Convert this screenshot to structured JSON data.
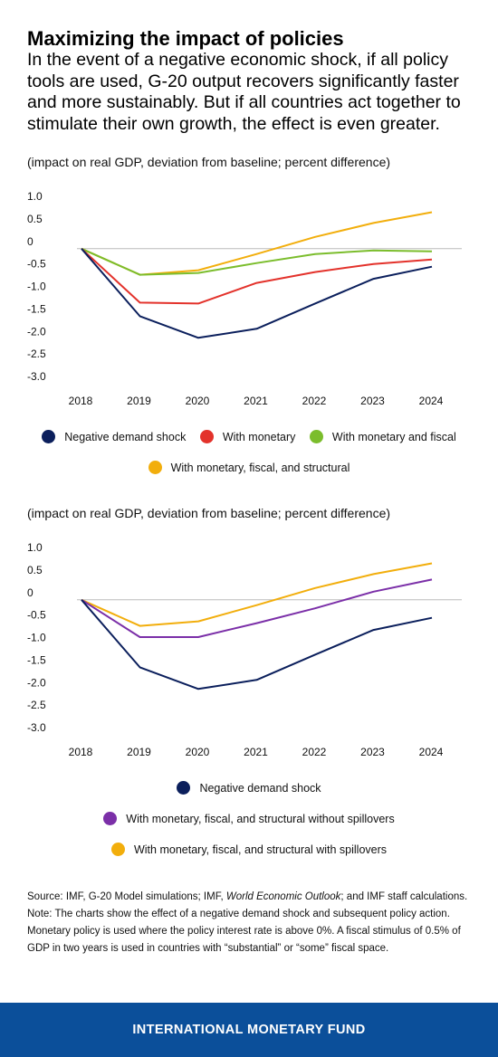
{
  "title": "Maximizing the impact of policies",
  "subtitle": "In the event of a negative economic shock, if all policy tools are used, G-20 output recovers significantly faster and more sustainably. But if all countries act together to stimulate their own growth, the effect is even greater.",
  "chart_data": [
    {
      "type": "line",
      "note": "(impact on real GDP, deviation from baseline; percent difference)",
      "x": [
        "2018",
        "2019",
        "2020",
        "2021",
        "2022",
        "2023",
        "2024"
      ],
      "y_ticks": [
        "1.0",
        "0.5",
        "0",
        "-0.5",
        "-1.0",
        "-1.5",
        "-2.0",
        "-2.5",
        "-3.0"
      ],
      "ylim": [
        -3.0,
        1.0
      ],
      "grid": false,
      "zero_line": true,
      "legend_position": "bottom",
      "series": [
        {
          "name": "Negative demand shock",
          "color": "#0b1f5c",
          "values": [
            0,
            -1.5,
            -1.98,
            -1.78,
            -1.22,
            -0.67,
            -0.4
          ]
        },
        {
          "name": "With monetary",
          "color": "#e3322b",
          "values": [
            0,
            -1.2,
            -1.22,
            -0.76,
            -0.52,
            -0.34,
            -0.24
          ]
        },
        {
          "name": "With monetary and fiscal",
          "color": "#7bbd2c",
          "values": [
            0,
            -0.58,
            -0.54,
            -0.32,
            -0.12,
            -0.04,
            -0.06
          ]
        },
        {
          "name": "With monetary, fiscal, and structural",
          "color": "#f2ae0c",
          "values": [
            0,
            -0.58,
            -0.48,
            -0.12,
            0.26,
            0.57,
            0.81
          ]
        }
      ]
    },
    {
      "type": "line",
      "note": "(impact on real GDP, deviation from baseline; percent difference)",
      "x": [
        "2018",
        "2019",
        "2020",
        "2021",
        "2022",
        "2023",
        "2024"
      ],
      "y_ticks": [
        "1.0",
        "0.5",
        "0",
        "-0.5",
        "-1.0",
        "-1.5",
        "-2.0",
        "-2.5",
        "-3.0"
      ],
      "ylim": [
        -3.0,
        1.0
      ],
      "grid": false,
      "zero_line": true,
      "legend_position": "bottom",
      "series": [
        {
          "name": "Negative demand shock",
          "color": "#0b1f5c",
          "values": [
            0,
            -1.5,
            -1.98,
            -1.78,
            -1.22,
            -0.67,
            -0.4
          ]
        },
        {
          "name": "With monetary, fiscal, and structural without spillovers",
          "color": "#7b2fa8",
          "values": [
            0,
            -0.83,
            -0.83,
            -0.52,
            -0.19,
            0.18,
            0.45
          ]
        },
        {
          "name": "With monetary, fiscal, and structural with spillovers",
          "color": "#f2ae0c",
          "values": [
            0,
            -0.58,
            -0.48,
            -0.12,
            0.26,
            0.57,
            0.81
          ]
        }
      ]
    }
  ],
  "source_label": "Source: IMF, G-20 Model simulations; IMF, ",
  "source_italic": "World Economic Outlook",
  "source_rest": "; and IMF staff calculations.",
  "note_text": "Note: The charts show the effect of a negative demand shock and subsequent policy action. Monetary policy is used where the policy interest rate is above 0%. A fiscal stimulus of 0.5% of GDP in two years is used in countries with “substantial” or “some” fiscal space.",
  "footer": "INTERNATIONAL MONETARY FUND"
}
